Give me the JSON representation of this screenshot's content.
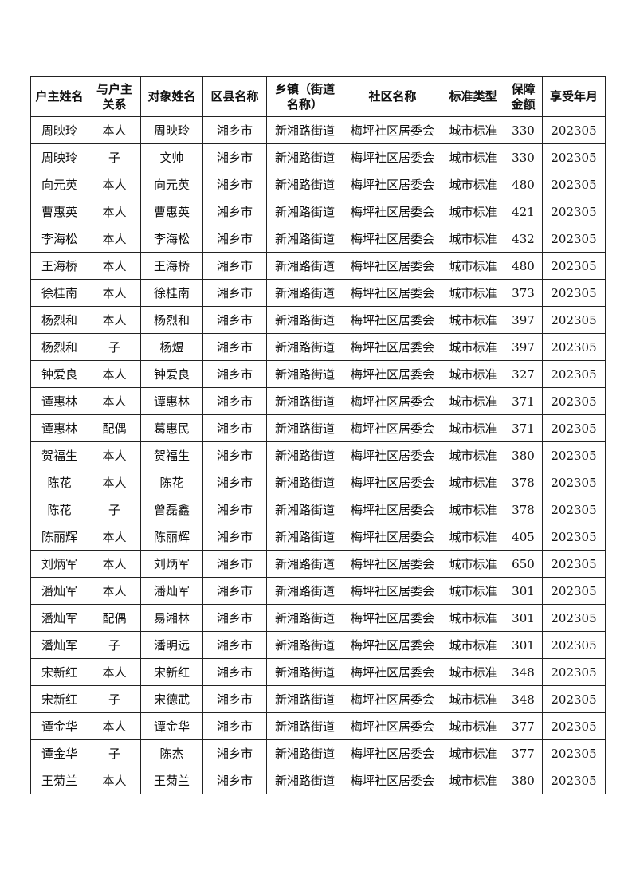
{
  "table": {
    "headers": [
      "户主姓名",
      "与户主关系",
      "对象姓名",
      "区县名称",
      "乡镇（街道名称）",
      "社区名称",
      "标准类型",
      "保障金额",
      "享受年月"
    ],
    "rows": [
      [
        "周映玲",
        "本人",
        "周映玲",
        "湘乡市",
        "新湘路街道",
        "梅坪社区居委会",
        "城市标准",
        "330",
        "202305"
      ],
      [
        "周映玲",
        "子",
        "文帅",
        "湘乡市",
        "新湘路街道",
        "梅坪社区居委会",
        "城市标准",
        "330",
        "202305"
      ],
      [
        "向元英",
        "本人",
        "向元英",
        "湘乡市",
        "新湘路街道",
        "梅坪社区居委会",
        "城市标准",
        "480",
        "202305"
      ],
      [
        "曹惠英",
        "本人",
        "曹惠英",
        "湘乡市",
        "新湘路街道",
        "梅坪社区居委会",
        "城市标准",
        "421",
        "202305"
      ],
      [
        "李海松",
        "本人",
        "李海松",
        "湘乡市",
        "新湘路街道",
        "梅坪社区居委会",
        "城市标准",
        "432",
        "202305"
      ],
      [
        "王海桥",
        "本人",
        "王海桥",
        "湘乡市",
        "新湘路街道",
        "梅坪社区居委会",
        "城市标准",
        "480",
        "202305"
      ],
      [
        "徐桂南",
        "本人",
        "徐桂南",
        "湘乡市",
        "新湘路街道",
        "梅坪社区居委会",
        "城市标准",
        "373",
        "202305"
      ],
      [
        "杨烈和",
        "本人",
        "杨烈和",
        "湘乡市",
        "新湘路街道",
        "梅坪社区居委会",
        "城市标准",
        "397",
        "202305"
      ],
      [
        "杨烈和",
        "子",
        "杨煜",
        "湘乡市",
        "新湘路街道",
        "梅坪社区居委会",
        "城市标准",
        "397",
        "202305"
      ],
      [
        "钟爱良",
        "本人",
        "钟爱良",
        "湘乡市",
        "新湘路街道",
        "梅坪社区居委会",
        "城市标准",
        "327",
        "202305"
      ],
      [
        "谭惠林",
        "本人",
        "谭惠林",
        "湘乡市",
        "新湘路街道",
        "梅坪社区居委会",
        "城市标准",
        "371",
        "202305"
      ],
      [
        "谭惠林",
        "配偶",
        "葛惠民",
        "湘乡市",
        "新湘路街道",
        "梅坪社区居委会",
        "城市标准",
        "371",
        "202305"
      ],
      [
        "贺福生",
        "本人",
        "贺福生",
        "湘乡市",
        "新湘路街道",
        "梅坪社区居委会",
        "城市标准",
        "380",
        "202305"
      ],
      [
        "陈花",
        "本人",
        "陈花",
        "湘乡市",
        "新湘路街道",
        "梅坪社区居委会",
        "城市标准",
        "378",
        "202305"
      ],
      [
        "陈花",
        "子",
        "曾磊鑫",
        "湘乡市",
        "新湘路街道",
        "梅坪社区居委会",
        "城市标准",
        "378",
        "202305"
      ],
      [
        "陈丽辉",
        "本人",
        "陈丽辉",
        "湘乡市",
        "新湘路街道",
        "梅坪社区居委会",
        "城市标准",
        "405",
        "202305"
      ],
      [
        "刘炳军",
        "本人",
        "刘炳军",
        "湘乡市",
        "新湘路街道",
        "梅坪社区居委会",
        "城市标准",
        "650",
        "202305"
      ],
      [
        "潘灿军",
        "本人",
        "潘灿军",
        "湘乡市",
        "新湘路街道",
        "梅坪社区居委会",
        "城市标准",
        "301",
        "202305"
      ],
      [
        "潘灿军",
        "配偶",
        "易湘林",
        "湘乡市",
        "新湘路街道",
        "梅坪社区居委会",
        "城市标准",
        "301",
        "202305"
      ],
      [
        "潘灿军",
        "子",
        "潘明远",
        "湘乡市",
        "新湘路街道",
        "梅坪社区居委会",
        "城市标准",
        "301",
        "202305"
      ],
      [
        "宋新红",
        "本人",
        "宋新红",
        "湘乡市",
        "新湘路街道",
        "梅坪社区居委会",
        "城市标准",
        "348",
        "202305"
      ],
      [
        "宋新红",
        "子",
        "宋德武",
        "湘乡市",
        "新湘路街道",
        "梅坪社区居委会",
        "城市标准",
        "348",
        "202305"
      ],
      [
        "谭金华",
        "本人",
        "谭金华",
        "湘乡市",
        "新湘路街道",
        "梅坪社区居委会",
        "城市标准",
        "377",
        "202305"
      ],
      [
        "谭金华",
        "子",
        "陈杰",
        "湘乡市",
        "新湘路街道",
        "梅坪社区居委会",
        "城市标准",
        "377",
        "202305"
      ],
      [
        "王菊兰",
        "本人",
        "王菊兰",
        "湘乡市",
        "新湘路街道",
        "梅坪社区居委会",
        "城市标准",
        "380",
        "202305"
      ]
    ]
  }
}
